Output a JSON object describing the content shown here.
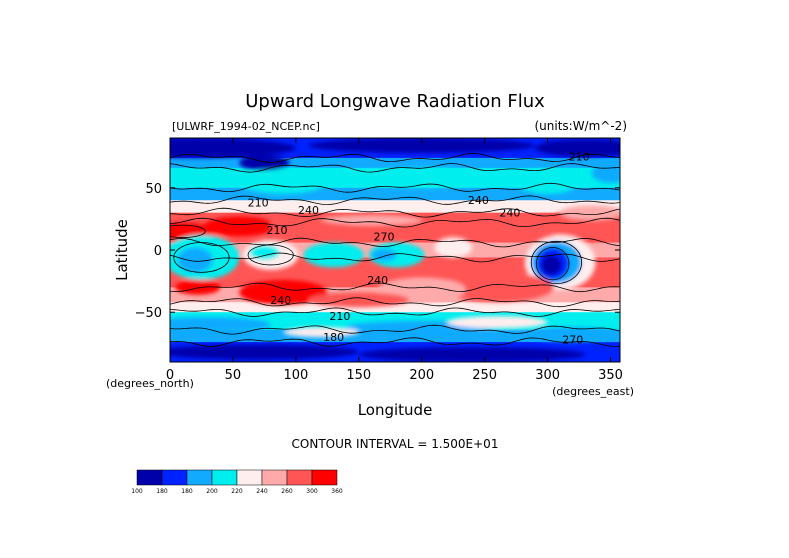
{
  "chart_data": {
    "type": "heatmap",
    "title": "Upward Longwave Radiation Flux",
    "file_label": "[ULWRF_1994-02_NCEP.nc]",
    "units_label": "(units:W/m^-2)",
    "xlabel": "Longitude",
    "ylabel": "Latitude",
    "x_units": "(degrees_east)",
    "y_units": "(degrees_north)",
    "xlim": [
      0,
      357.5
    ],
    "ylim": [
      -90,
      90
    ],
    "x_ticks": [
      0,
      50,
      100,
      150,
      200,
      250,
      300,
      350
    ],
    "y_ticks": [
      -50,
      0,
      50
    ],
    "contour_interval_text": "CONTOUR INTERVAL = 1.500E+01",
    "contour_labels": [
      {
        "text": "240",
        "lon": 110,
        "lat": 32
      },
      {
        "text": "210",
        "lon": 70,
        "lat": 38
      },
      {
        "text": "240",
        "lon": 245,
        "lat": 40
      },
      {
        "text": "240",
        "lon": 270,
        "lat": 30
      },
      {
        "text": "210",
        "lon": 85,
        "lat": 16
      },
      {
        "text": "270",
        "lon": 170,
        "lat": 11
      },
      {
        "text": "240",
        "lon": 165,
        "lat": -24
      },
      {
        "text": "240",
        "lon": 88,
        "lat": -40
      },
      {
        "text": "210",
        "lon": 135,
        "lat": -53
      },
      {
        "text": "180",
        "lon": 130,
        "lat": -70
      },
      {
        "text": "270",
        "lon": 320,
        "lat": -72
      },
      {
        "text": "210",
        "lon": 325,
        "lat": 75
      }
    ],
    "colorbar": {
      "levels": [
        "100",
        "180",
        "180",
        "200",
        "220",
        "240",
        "260",
        "300",
        "360"
      ],
      "colors": [
        "#0000aa",
        "#0022ff",
        "#11aaff",
        "#00eeee",
        "#ffeeee",
        "#ffaaaa",
        "#ff5555",
        "#ff0000"
      ]
    }
  }
}
